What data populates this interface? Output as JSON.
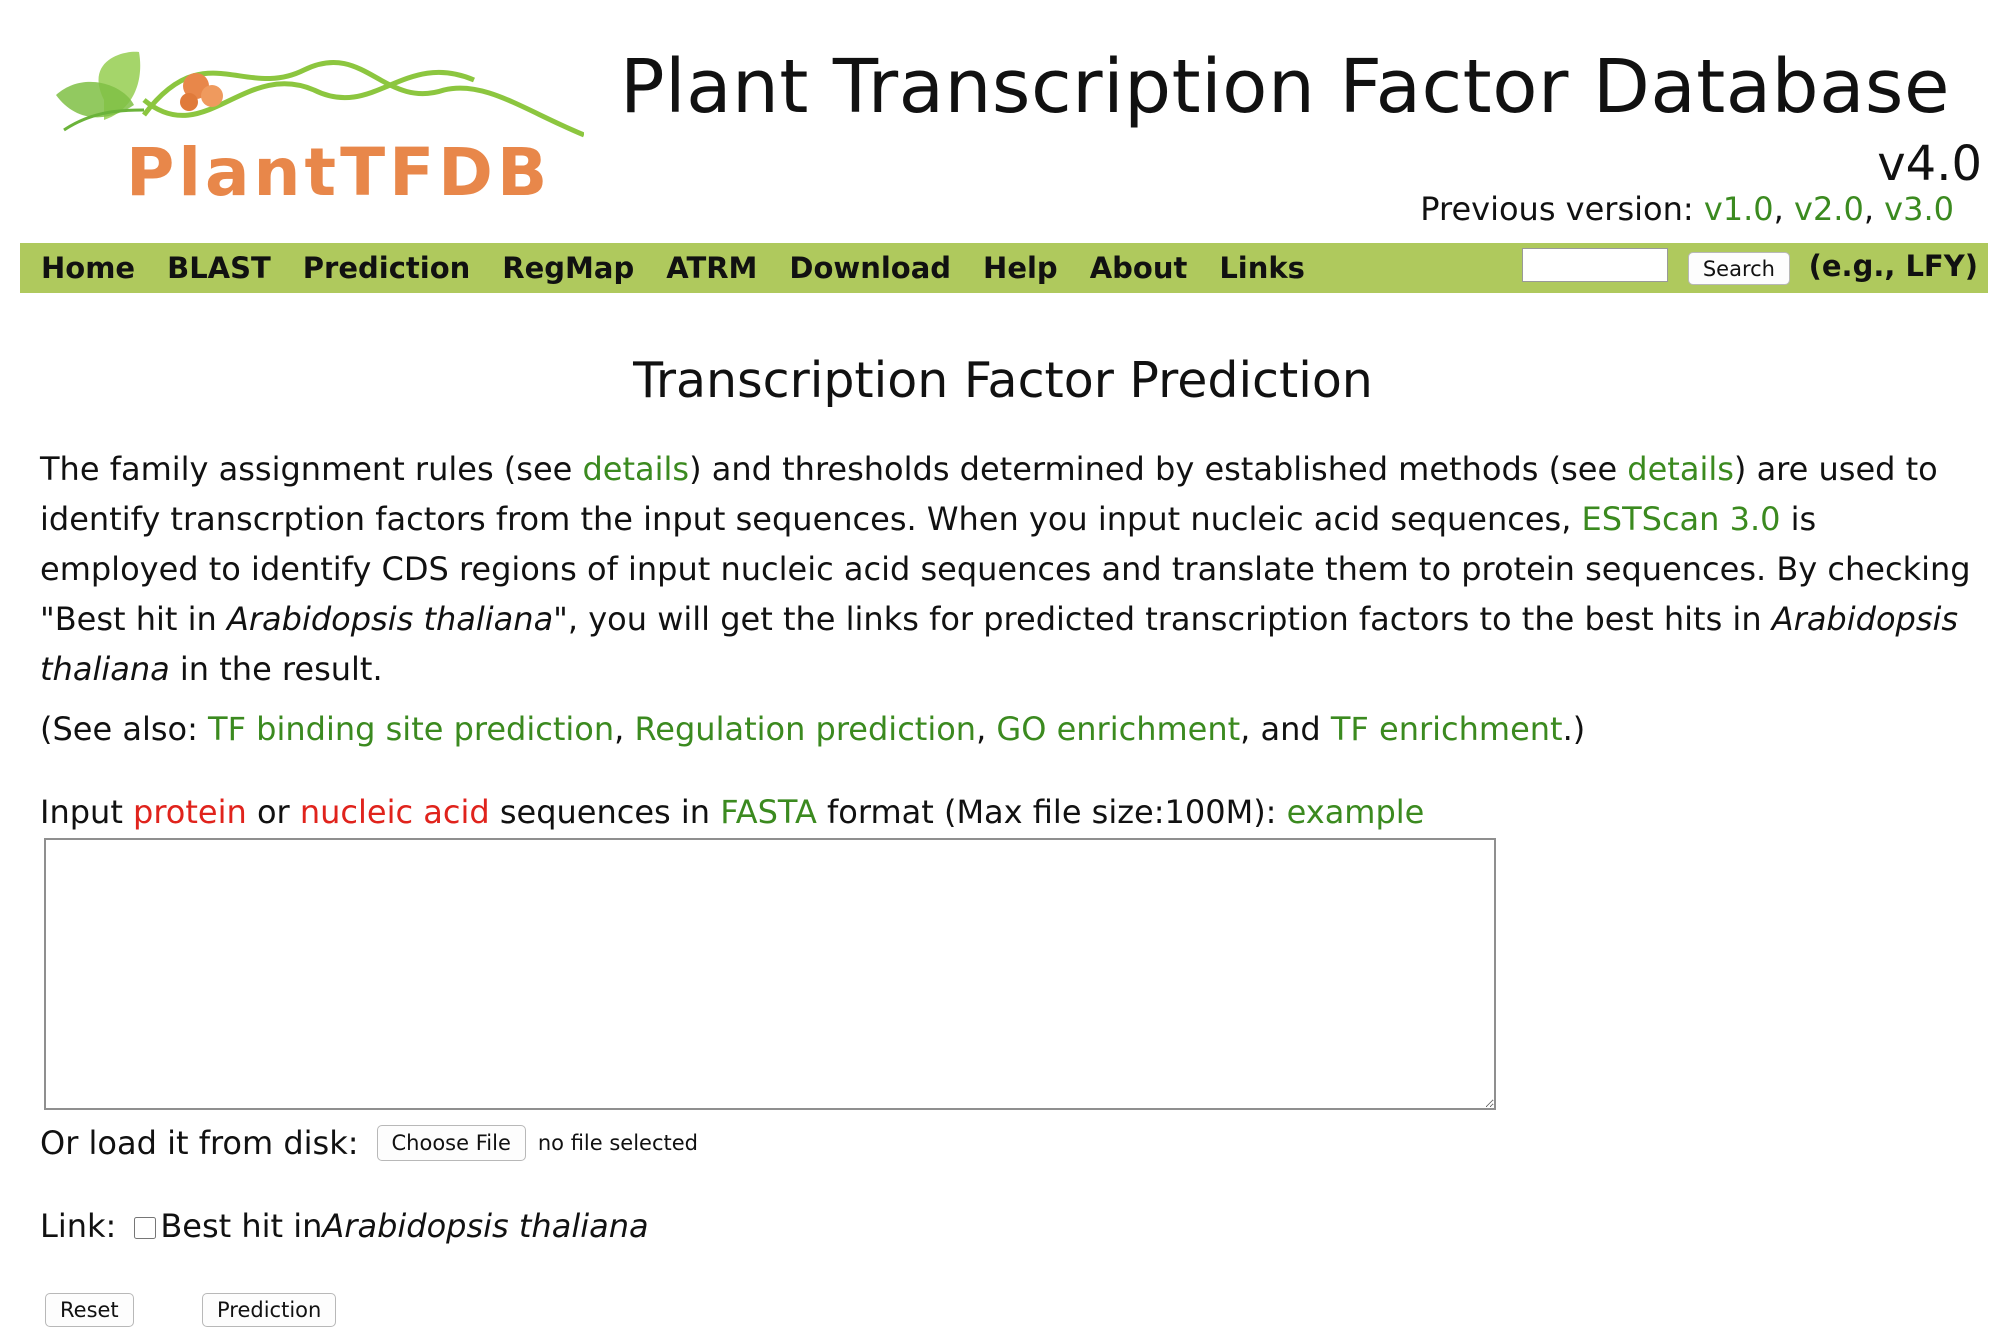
{
  "header": {
    "logo_text": "PlantTFDB",
    "title": "Plant Transcription Factor Database",
    "version": "v4.0",
    "previous_label": "Previous version: ",
    "previous_versions": [
      "v1.0",
      "v2.0",
      "v3.0"
    ],
    "separator": ", "
  },
  "nav": {
    "items": [
      "Home",
      "BLAST",
      "Prediction",
      "RegMap",
      "ATRM",
      "Download",
      "Help",
      "About",
      "Links"
    ],
    "search_button": "Search",
    "search_example": "(e.g., LFY)",
    "search_value": ""
  },
  "main": {
    "heading": "Transcription Factor Prediction",
    "intro": {
      "p1": "The family assignment rules (see ",
      "details1": "details",
      "p2": ") and thresholds determined by established methods (see ",
      "details2": "details",
      "p3": ") are used to identify transcrption factors from the input sequences. When you input nucleic acid sequences, ",
      "estscan": "ESTScan 3.0",
      "p4": " is employed to identify CDS regions of input nucleic acid sequences and translate them to protein sequences. By checking \"Best hit in ",
      "species1": "Arabidopsis thaliana",
      "p5": "\", you will get the links for predicted transcription factors to the best hits in ",
      "species2": "Arabidopsis thaliana",
      "p6": " in the result."
    },
    "see_also": {
      "prefix": "(See also: ",
      "tfbs": "TF binding site prediction",
      "sep1": ", ",
      "regulation": "Regulation prediction",
      "sep2": ", ",
      "go": "GO enrichment",
      "sep3": ", and ",
      "tfe": "TF enrichment",
      "suffix": ".)"
    },
    "input_label": {
      "p1": "Input ",
      "protein": "protein",
      "or": " or ",
      "nucleic": "nucleic acid",
      "p2": " sequences in ",
      "fasta": "FASTA",
      "p3": " format (Max file size:100M): ",
      "example": "example"
    },
    "textarea_value": "",
    "load_label": "Or load it from disk:",
    "choose_file": "Choose File",
    "file_status": "no file selected",
    "link_label": "Link:",
    "best_hit_prefix": "Best hit in ",
    "best_hit_species": "Arabidopsis thaliana",
    "reset": "Reset",
    "prediction": "Prediction"
  },
  "colors": {
    "nav_bg": "#afc95d",
    "link_green": "#3b8a1f",
    "link_red": "#e0231c",
    "logo_orange": "#e8874a"
  }
}
